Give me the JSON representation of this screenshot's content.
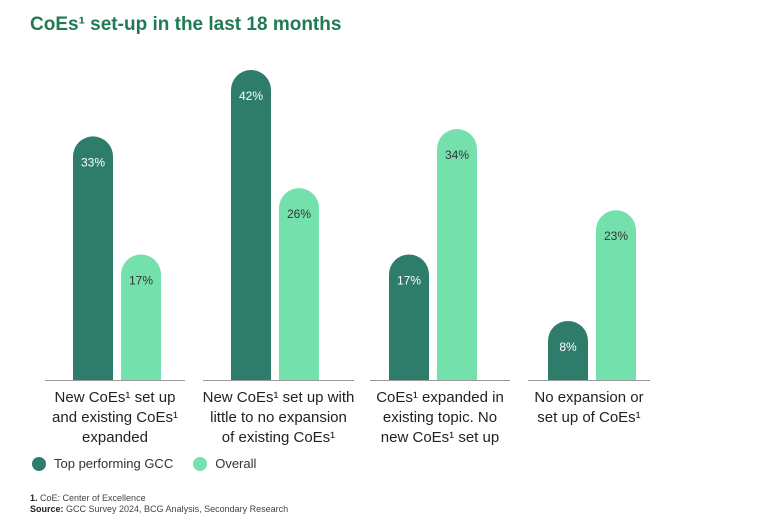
{
  "title": "CoEs¹ set-up in the last 18 months",
  "colors": {
    "title": "#1f7a55",
    "top": "#2e7d6a",
    "overall": "#74e1ad"
  },
  "chart_data": {
    "type": "bar",
    "categories": [
      [
        "New CoEs¹ set up",
        "and existing CoEs¹",
        "expanded"
      ],
      [
        "New CoEs¹ set up with",
        "little to no expansion",
        "of existing CoEs¹"
      ],
      [
        "CoEs¹ expanded in",
        "existing topic. No",
        "new CoEs¹ set up"
      ],
      [
        "No expansion or",
        "set up of CoEs¹"
      ]
    ],
    "series": [
      {
        "name": "Top performing GCC",
        "values": [
          33,
          42,
          17,
          8
        ],
        "labels": [
          "33%",
          "42%",
          "17%",
          "8%"
        ]
      },
      {
        "name": "Overall",
        "values": [
          17,
          26,
          34,
          23
        ],
        "labels": [
          "17%",
          "26%",
          "34%",
          "23%"
        ]
      }
    ],
    "ylim": [
      0,
      42
    ]
  },
  "legend": {
    "top": "Top performing GCC",
    "overall": "Overall"
  },
  "footnotes": {
    "note_marker": "1.",
    "note_text": " CoE: Center of Excellence",
    "source_label": "Source:",
    "source_text": " GCC Survey 2024, BCG Analysis, Secondary Research"
  }
}
